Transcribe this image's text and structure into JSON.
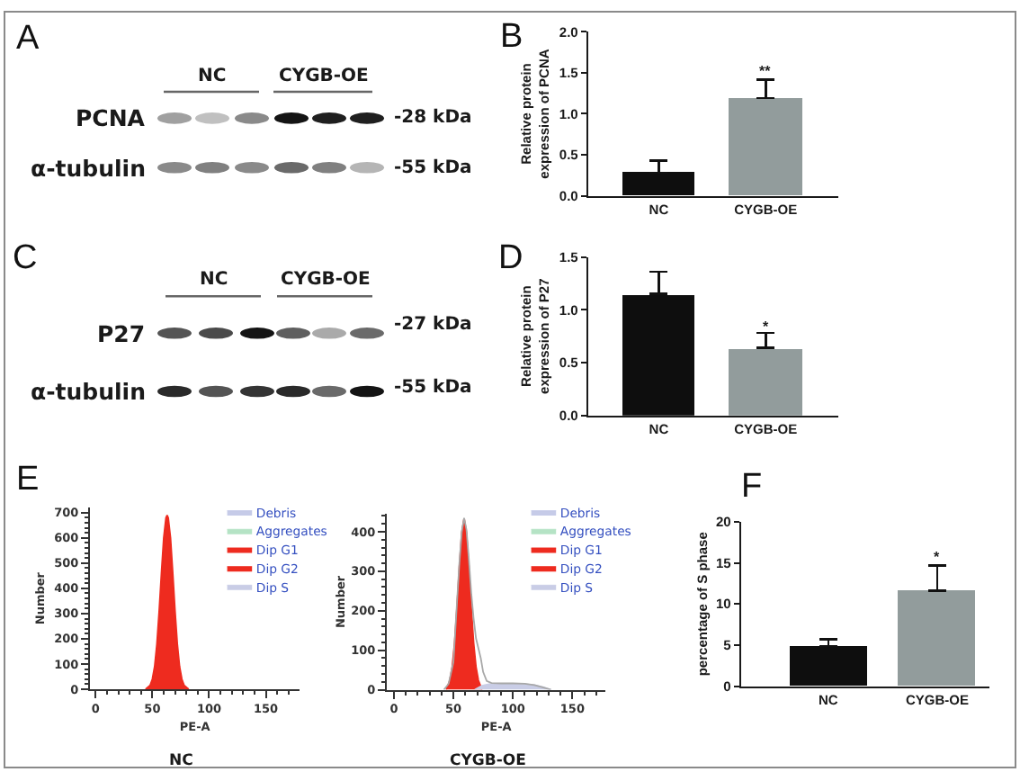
{
  "chart_data": [
    {
      "type": "other",
      "title": "A",
      "categories": [
        "NC",
        "CYGB-OE"
      ],
      "y_categories": [
        "PCNA",
        "α-tubulin"
      ],
      "y2_categories": [
        "-28 kDa",
        "-55 kDa"
      ]
    },
    {
      "type": "bar",
      "title": "B",
      "categories": [
        "NC",
        "CYGB-OE"
      ],
      "values": [
        0.28,
        1.19
      ],
      "colors": [
        "#0e0e0e",
        "#929c9c"
      ],
      "errors": [
        [
          0.28,
          0.43
        ],
        [
          1.19,
          1.42
        ]
      ],
      "ylabel": "Relative protein\nexpression of PCNA",
      "ylim": [
        0,
        2
      ],
      "yticks": [
        {
          "value": 0,
          "label": "0.0"
        },
        0.5,
        {
          "value": 1,
          "label": "1.0"
        },
        1.5,
        {
          "value": 2,
          "label": "2.0"
        }
      ],
      "annotations": [
        "**"
      ]
    },
    {
      "type": "other",
      "title": "C",
      "categories": [
        "NC",
        "CYGB-OE"
      ],
      "y_categories": [
        "P27",
        "α-tubulin"
      ],
      "y2_categories": [
        "-27 kDa",
        "-55 kDa"
      ]
    },
    {
      "type": "bar",
      "title": "D",
      "categories": [
        "NC",
        "CYGB-OE"
      ],
      "values": [
        1.15,
        0.64
      ],
      "colors": [
        "#0e0e0e",
        "#929c9c"
      ],
      "errors": [
        [
          1.15,
          1.36
        ],
        [
          0.64,
          0.78
        ]
      ],
      "ylabel": "Relative protein\nexpression of P27",
      "ylim": [
        0,
        1.5
      ],
      "yticks": [
        {
          "value": 0,
          "label": "0.0"
        },
        0.5,
        {
          "value": 1,
          "label": "1.0"
        },
        1.5
      ],
      "annotations": [
        "*"
      ]
    },
    {
      "type": "area",
      "title": "E",
      "xlabel": "PE-A",
      "ylabel": "Number",
      "annotations": [
        "NC"
      ],
      "legend": "top right",
      "xlim": [
        -5,
        180
      ],
      "xticks": [
        0,
        {
          "value": 10,
          "label": null
        },
        {
          "value": 20,
          "label": null
        },
        {
          "value": 30,
          "label": null
        },
        {
          "value": 40,
          "label": null
        },
        50,
        {
          "value": 60,
          "label": null
        },
        {
          "value": 70,
          "label": null
        },
        {
          "value": 80,
          "label": null
        },
        {
          "value": 90,
          "label": null
        },
        100,
        {
          "value": 110,
          "label": null
        },
        {
          "value": 120,
          "label": null
        },
        {
          "value": 130,
          "label": null
        },
        {
          "value": 140,
          "label": null
        },
        150,
        {
          "value": 160,
          "label": null
        },
        {
          "value": 170,
          "label": null
        }
      ],
      "ylim": [
        0,
        720
      ],
      "yticks": [
        0,
        {
          "value": 20,
          "label": null
        },
        {
          "value": 40,
          "label": null
        },
        {
          "value": 60,
          "label": null
        },
        {
          "value": 80,
          "label": null
        },
        100,
        {
          "value": 120,
          "label": null
        },
        {
          "value": 140,
          "label": null
        },
        {
          "value": 160,
          "label": null
        },
        {
          "value": 180,
          "label": null
        },
        200,
        {
          "value": 220,
          "label": null
        },
        {
          "value": 240,
          "label": null
        },
        {
          "value": 260,
          "label": null
        },
        {
          "value": 280,
          "label": null
        },
        300,
        {
          "value": 320,
          "label": null
        },
        {
          "value": 340,
          "label": null
        },
        {
          "value": 360,
          "label": null
        },
        {
          "value": 380,
          "label": null
        },
        400,
        {
          "value": 420,
          "label": null
        },
        {
          "value": 440,
          "label": null
        },
        {
          "value": 460,
          "label": null
        },
        {
          "value": 480,
          "label": null
        },
        500,
        {
          "value": 520,
          "label": null
        },
        {
          "value": 540,
          "label": null
        },
        {
          "value": 560,
          "label": null
        },
        {
          "value": 580,
          "label": null
        },
        600,
        {
          "value": 620,
          "label": null
        },
        {
          "value": 640,
          "label": null
        },
        {
          "value": 660,
          "label": null
        },
        {
          "value": 680,
          "label": null
        },
        700
      ],
      "series": [
        {
          "name": "Debris",
          "color": "#c6cbe8",
          "values": [
            null
          ]
        },
        {
          "name": "Aggregates",
          "color": "#b5e3c5",
          "values": [
            null
          ]
        },
        {
          "name": "Dip G1",
          "color": "#ee2b1f",
          "x": [
            44,
            48,
            50,
            52,
            54,
            56,
            58,
            60,
            62,
            63,
            64,
            66,
            68,
            70,
            72,
            74,
            76,
            78,
            82
          ],
          "values": [
            0,
            15,
            40,
            90,
            180,
            310,
            460,
            600,
            680,
            690,
            680,
            600,
            460,
            310,
            180,
            90,
            40,
            15,
            0
          ]
        },
        {
          "name": "Dip G2",
          "color": "#ee2b1f",
          "values": [
            null
          ]
        },
        {
          "name": "Dip S",
          "color": "#c9cde6",
          "values": [
            null
          ]
        }
      ]
    },
    {
      "type": "area",
      "xlabel": "PE-A",
      "ylabel": "Number",
      "annotations": [
        "CYGB-OE"
      ],
      "legend": "top right",
      "xlim": [
        -6,
        178
      ],
      "xticks": [
        0,
        {
          "value": 10,
          "label": null
        },
        {
          "value": 20,
          "label": null
        },
        {
          "value": 30,
          "label": null
        },
        {
          "value": 40,
          "label": null
        },
        50,
        {
          "value": 60,
          "label": null
        },
        {
          "value": 70,
          "label": null
        },
        {
          "value": 80,
          "label": null
        },
        {
          "value": 90,
          "label": null
        },
        100,
        {
          "value": 110,
          "label": null
        },
        {
          "value": 120,
          "label": null
        },
        {
          "value": 130,
          "label": null
        },
        {
          "value": 140,
          "label": null
        },
        150,
        {
          "value": 160,
          "label": null
        },
        {
          "value": 170,
          "label": null
        }
      ],
      "ylim": [
        0,
        445
      ],
      "yticks": [
        0,
        {
          "value": 20,
          "label": null
        },
        {
          "value": 40,
          "label": null
        },
        {
          "value": 60,
          "label": null
        },
        {
          "value": 80,
          "label": null
        },
        100,
        {
          "value": 120,
          "label": null
        },
        {
          "value": 140,
          "label": null
        },
        {
          "value": 160,
          "label": null
        },
        {
          "value": 180,
          "label": null
        },
        200,
        {
          "value": 220,
          "label": null
        },
        {
          "value": 240,
          "label": null
        },
        {
          "value": 260,
          "label": null
        },
        {
          "value": 280,
          "label": null
        },
        300,
        {
          "value": 320,
          "label": null
        },
        {
          "value": 340,
          "label": null
        },
        {
          "value": 360,
          "label": null
        },
        {
          "value": 380,
          "label": null
        },
        400,
        {
          "value": 420,
          "label": null
        },
        {
          "value": 440,
          "label": null
        }
      ],
      "series": [
        {
          "name": "Debris",
          "color": "#c6cbe8",
          "values": [
            null
          ]
        },
        {
          "name": "Aggregates",
          "color": "#b5e3c5",
          "values": [
            null
          ]
        },
        {
          "name": "Dip G1",
          "color": "#ee2b1f",
          "x": [
            44,
            47,
            49,
            51,
            53,
            55,
            57,
            59,
            61,
            63,
            65,
            67,
            69,
            71,
            74
          ],
          "values": [
            0,
            24,
            58,
            119,
            209,
            312,
            397,
            434,
            397,
            312,
            209,
            119,
            58,
            24,
            0
          ]
        },
        {
          "name": "Dip G2",
          "color": "#ee2b1f",
          "values": [
            null
          ]
        },
        {
          "name": "Dip S",
          "color": "#c9cde6",
          "x": [
            68,
            74,
            80,
            90,
            100,
            110,
            118,
            126,
            132
          ],
          "values": [
            0,
            10,
            14,
            15,
            15,
            14,
            12,
            6,
            0
          ]
        },
        {
          "type": "line",
          "color": "#a8a8a8",
          "x": [
            42,
            46,
            50,
            53,
            55,
            57,
            59,
            61,
            63,
            65,
            67,
            69,
            71,
            73,
            75,
            78,
            82,
            90,
            100,
            110,
            118,
            125,
            132
          ],
          "values": [
            0,
            15,
            70,
            220,
            320,
            400,
            435,
            405,
            330,
            245,
            180,
            130,
            105,
            80,
            45,
            22,
            17,
            16,
            16,
            15,
            12,
            6,
            0
          ]
        }
      ]
    },
    {
      "type": "bar",
      "title": "F",
      "categories": [
        "NC",
        "CYGB-OE"
      ],
      "values": [
        4.9,
        11.6
      ],
      "colors": [
        "#0e0e0e",
        "#929c9c"
      ],
      "errors": [
        [
          4.9,
          5.7
        ],
        [
          11.6,
          14.7
        ]
      ],
      "ylabel": "percentage of S phase",
      "ylim": [
        0,
        20
      ],
      "yticks": [
        0,
        5,
        10,
        15,
        20
      ],
      "annotations": [
        "*"
      ]
    }
  ]
}
